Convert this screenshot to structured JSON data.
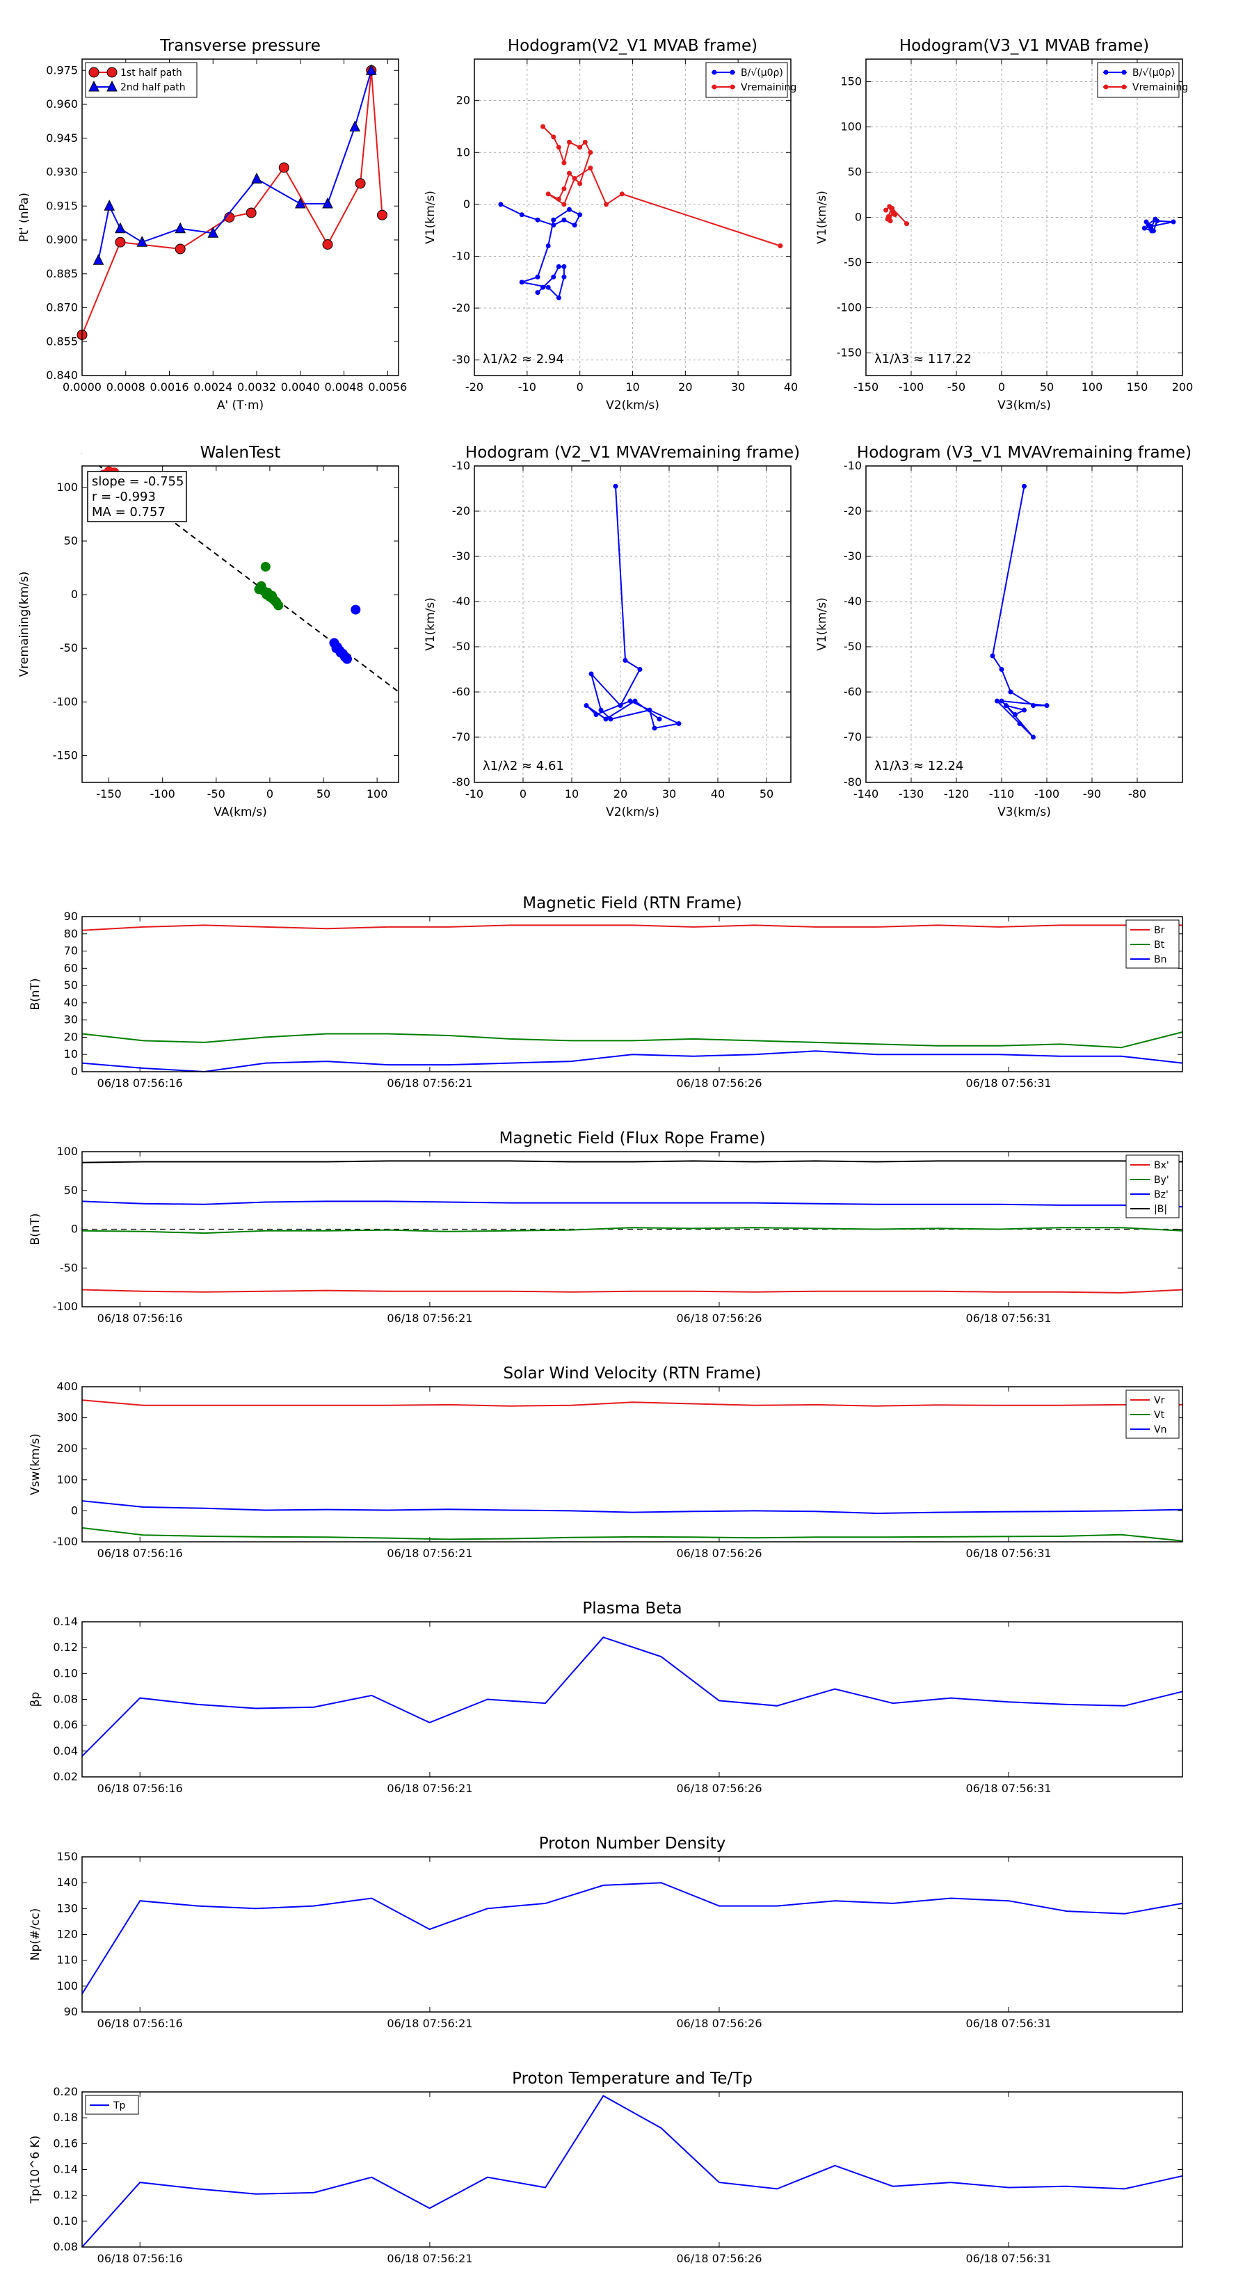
{
  "colors": {
    "red": "#e41a1c",
    "blue": "#0000ff",
    "green": "#008000",
    "black": "#000000",
    "grid": "#a9a9a9"
  },
  "chart_data": [
    {
      "id": "transverse",
      "type": "line",
      "title": "Transverse pressure",
      "xlabel": "A' (T·m)",
      "ylabel": "Pt' (nPa)",
      "xlim": [
        0.0,
        0.0058
      ],
      "ylim": [
        0.84,
        0.98
      ],
      "xticks": [
        0.0,
        0.0008,
        0.0016,
        0.0024,
        0.0032,
        0.004,
        0.0048,
        0.0056
      ],
      "xtick_labels": [
        "0.0000",
        "0.0008",
        "0.0016",
        "0.0024",
        "0.0032",
        "0.0040",
        "0.0048",
        "0.0056"
      ],
      "yticks": [
        0.84,
        0.855,
        0.87,
        0.885,
        0.9,
        0.915,
        0.93,
        0.945,
        0.96,
        0.975
      ],
      "ytick_labels": [
        "0.840",
        "0.855",
        "0.870",
        "0.885",
        "0.900",
        "0.915",
        "0.930",
        "0.945",
        "0.960",
        "0.975"
      ],
      "legend_position": "top-left",
      "series": [
        {
          "name": "1st half path",
          "color": "red",
          "marker": "circle",
          "x": [
            0.0,
            0.0007,
            0.0018,
            0.0027,
            0.0031,
            0.0037,
            0.0045,
            0.0051,
            0.0053,
            0.0055
          ],
          "y": [
            0.858,
            0.899,
            0.896,
            0.91,
            0.912,
            0.932,
            0.898,
            0.925,
            0.975,
            0.911
          ]
        },
        {
          "name": "2nd half path",
          "color": "blue",
          "marker": "triangle",
          "x": [
            0.0003,
            0.0005,
            0.0007,
            0.0011,
            0.0018,
            0.0024,
            0.0032,
            0.004,
            0.0045,
            0.005,
            0.0053
          ],
          "y": [
            0.891,
            0.915,
            0.905,
            0.899,
            0.905,
            0.903,
            0.927,
            0.916,
            0.916,
            0.95,
            0.975
          ]
        }
      ]
    },
    {
      "id": "hodo_v2_mvab",
      "type": "line",
      "title": "Hodogram(V2_V1 MVAB frame)",
      "xlabel": "V2(km/s)",
      "ylabel": "V1(km/s)",
      "xlim": [
        -20,
        40
      ],
      "ylim": [
        -33,
        28
      ],
      "grid": true,
      "xticks": [
        -20,
        -10,
        0,
        10,
        20,
        30,
        40
      ],
      "yticks": [
        -30,
        -20,
        -10,
        0,
        10,
        20
      ],
      "annotation": "λ1/λ2 ≈ 2.94",
      "legend_position": "top-right",
      "series": [
        {
          "name": "B/√(μ0ρ)",
          "color": "blue",
          "marker": "dot",
          "x": [
            -15,
            -11,
            -8,
            -5,
            -3,
            -1,
            0,
            -2,
            -5,
            -6,
            -8,
            -11,
            -6,
            -4,
            -3,
            -3,
            -4,
            -5,
            -7,
            -8
          ],
          "y": [
            0,
            -2,
            -3,
            -4,
            -3,
            -4,
            -2,
            -1,
            -3,
            -8,
            -14,
            -15,
            -16,
            -18,
            -14,
            -12,
            -12,
            -14,
            -16,
            -17
          ]
        },
        {
          "name": "Vremaining",
          "color": "red",
          "marker": "dot",
          "x": [
            -7,
            -5,
            -4,
            -3,
            -2,
            0,
            1,
            2,
            0,
            -2,
            -3,
            -4,
            -6,
            -3,
            -1,
            2,
            5,
            8,
            38
          ],
          "y": [
            15,
            13,
            11,
            8,
            12,
            11,
            12,
            10,
            4,
            6,
            3,
            1,
            2,
            0,
            5,
            7,
            0,
            2,
            -8
          ]
        }
      ]
    },
    {
      "id": "hodo_v3_mvab",
      "type": "line",
      "title": "Hodogram(V3_V1 MVAB frame)",
      "xlabel": "V3(km/s)",
      "ylabel": "V1(km/s)",
      "xlim": [
        -150,
        200
      ],
      "ylim": [
        -175,
        175
      ],
      "grid": true,
      "xticks": [
        -150,
        -100,
        -50,
        0,
        50,
        100,
        150,
        200
      ],
      "yticks": [
        -150,
        -100,
        -50,
        0,
        50,
        100,
        150
      ],
      "annotation": "λ1/λ3 ≈ 117.22",
      "legend_position": "top-right",
      "series": [
        {
          "name": "B/√(μ0ρ)",
          "color": "blue",
          "marker": "dot",
          "x": [
            160,
            165,
            170,
            162,
            168,
            172,
            190,
            165,
            158,
            166
          ],
          "y": [
            -5,
            -12,
            -2,
            -8,
            -15,
            -4,
            -5,
            -10,
            -12,
            -15
          ]
        },
        {
          "name": "Vremaining",
          "color": "red",
          "marker": "dot",
          "x": [
            -128,
            -124,
            -120,
            -126,
            -122,
            -118,
            -125,
            -123,
            -121,
            -105
          ],
          "y": [
            8,
            12,
            5,
            -2,
            10,
            3,
            1,
            -4,
            10,
            -7
          ]
        }
      ]
    },
    {
      "id": "walen",
      "type": "scatter",
      "title": "WalenTest",
      "xlabel": "VA(km/s)",
      "ylabel": "Vremaining(km/s)",
      "xlim": [
        -175,
        120
      ],
      "ylim": [
        -175,
        120
      ],
      "xticks": [
        -150,
        -100,
        -50,
        0,
        50,
        100
      ],
      "yticks": [
        -150,
        -100,
        -50,
        0,
        50,
        100
      ],
      "annotations": [
        "slope = -0.755",
        "r = -0.993",
        "MA = 0.757"
      ],
      "fit_line": {
        "slope": -0.755,
        "x_range": [
          -175,
          120
        ]
      },
      "series": [
        {
          "name": "red",
          "color": "red",
          "x": [
            -155,
            -150,
            -148,
            -145
          ],
          "y": [
            112,
            115,
            110,
            114
          ]
        },
        {
          "name": "green",
          "color": "green",
          "x": [
            -10,
            -5,
            -3,
            0,
            3,
            5,
            8,
            -8,
            -2,
            2,
            6,
            -4
          ],
          "y": [
            5,
            3,
            0,
            -2,
            -4,
            -6,
            -10,
            8,
            2,
            -1,
            -7,
            26
          ]
        },
        {
          "name": "blue",
          "color": "blue",
          "x": [
            60,
            62,
            65,
            68,
            70,
            72,
            66,
            63,
            80
          ],
          "y": [
            -45,
            -50,
            -52,
            -55,
            -58,
            -60,
            -54,
            -49,
            -14
          ]
        }
      ]
    },
    {
      "id": "hodo_v2_mvav",
      "type": "line",
      "title": "Hodogram (V2_V1 MVAVremaining frame)",
      "xlabel": "V2(km/s)",
      "ylabel": "V1(km/s)",
      "xlim": [
        -10,
        55
      ],
      "ylim": [
        -80,
        -10
      ],
      "grid": true,
      "xticks": [
        -10,
        0,
        10,
        20,
        30,
        40,
        50
      ],
      "yticks": [
        -80,
        -70,
        -60,
        -50,
        -40,
        -30,
        -20,
        -10
      ],
      "annotation": "λ1/λ2 ≈ 4.61",
      "series": [
        {
          "name": "V",
          "color": "blue",
          "marker": "dot",
          "x": [
            19,
            21,
            24,
            20,
            14,
            16,
            18,
            26,
            27,
            32,
            22,
            15,
            13,
            17,
            23,
            28
          ],
          "y": [
            -14.5,
            -53,
            -55,
            -63,
            -56,
            -64,
            -66,
            -64,
            -68,
            -67,
            -62,
            -65,
            -63,
            -66,
            -62,
            -66
          ]
        }
      ]
    },
    {
      "id": "hodo_v3_mvav",
      "type": "line",
      "title": "Hodogram (V3_V1 MVAVremaining frame)",
      "xlabel": "V3(km/s)",
      "ylabel": "V1(km/s)",
      "xlim": [
        -140,
        -70
      ],
      "ylim": [
        -80,
        -10
      ],
      "grid": true,
      "xticks": [
        -140,
        -130,
        -120,
        -110,
        -100,
        -90,
        -80
      ],
      "yticks": [
        -80,
        -70,
        -60,
        -50,
        -40,
        -30,
        -20,
        -10
      ],
      "annotation": "λ1/λ3 ≈ 12.24",
      "series": [
        {
          "name": "V",
          "color": "blue",
          "marker": "dot",
          "x": [
            -105,
            -112,
            -110,
            -108,
            -103,
            -100,
            -110,
            -107,
            -105,
            -109,
            -103,
            -111,
            -106
          ],
          "y": [
            -14.5,
            -52,
            -55,
            -60,
            -63,
            -63,
            -62,
            -65,
            -64,
            -63,
            -70,
            -62,
            -67
          ]
        }
      ]
    },
    {
      "id": "mag_rtn",
      "type": "line",
      "title": "Magnetic Field (RTN Frame)",
      "ylabel": "B(nT)",
      "ylim": [
        0,
        90
      ],
      "yticks": [
        0,
        10,
        20,
        30,
        40,
        50,
        60,
        70,
        80,
        90
      ],
      "xtick_labels": [
        "06/18 07:56:16",
        "06/18 07:56:21",
        "06/18 07:56:26",
        "06/18 07:56:31"
      ],
      "legend_position": "top-right",
      "series": [
        {
          "name": "Br",
          "color": "red",
          "values": [
            82,
            84,
            85,
            84,
            83,
            84,
            84,
            85,
            85,
            85,
            84,
            85,
            84,
            84,
            85,
            84,
            85,
            85,
            85
          ]
        },
        {
          "name": "Bt",
          "color": "green",
          "values": [
            22,
            18,
            17,
            20,
            22,
            22,
            21,
            19,
            18,
            18,
            19,
            18,
            17,
            16,
            15,
            15,
            16,
            14,
            23
          ]
        },
        {
          "name": "Bn",
          "color": "blue",
          "values": [
            5,
            2,
            0,
            5,
            6,
            4,
            4,
            5,
            6,
            10,
            9,
            10,
            12,
            10,
            10,
            10,
            9,
            9,
            5
          ]
        }
      ]
    },
    {
      "id": "mag_fr",
      "type": "line",
      "title": "Magnetic Field (Flux Rope Frame)",
      "ylabel": "B(nT)",
      "ylim": [
        -100,
        100
      ],
      "yticks": [
        -100,
        -50,
        0,
        50,
        100
      ],
      "xtick_labels": [
        "06/18 07:56:16",
        "06/18 07:56:21",
        "06/18 07:56:26",
        "06/18 07:56:31"
      ],
      "legend_position": "top-right",
      "dashed_zero": true,
      "series": [
        {
          "name": "Bx'",
          "color": "red",
          "values": [
            -78,
            -80,
            -81,
            -80,
            -79,
            -80,
            -80,
            -80,
            -81,
            -80,
            -80,
            -81,
            -80,
            -80,
            -80,
            -81,
            -81,
            -82,
            -78
          ]
        },
        {
          "name": "By'",
          "color": "green",
          "values": [
            -2,
            -3,
            -5,
            -2,
            -2,
            -1,
            -3,
            -2,
            -1,
            2,
            1,
            2,
            1,
            0,
            1,
            0,
            2,
            2,
            -2
          ]
        },
        {
          "name": "Bz'",
          "color": "blue",
          "values": [
            36,
            33,
            32,
            35,
            36,
            36,
            35,
            34,
            34,
            34,
            34,
            34,
            33,
            32,
            32,
            32,
            31,
            31,
            29
          ]
        },
        {
          "name": "|B|",
          "color": "black",
          "values": [
            86,
            87,
            87,
            87,
            87,
            88,
            88,
            88,
            87,
            87,
            88,
            87,
            88,
            87,
            88,
            88,
            88,
            88,
            87
          ]
        }
      ]
    },
    {
      "id": "vsw",
      "type": "line",
      "title": "Solar Wind Velocity (RTN Frame)",
      "ylabel": "Vsw(km/s)",
      "ylim": [
        -100,
        400
      ],
      "yticks": [
        -100,
        0,
        100,
        200,
        300,
        400
      ],
      "xtick_labels": [
        "06/18 07:56:16",
        "06/18 07:56:21",
        "06/18 07:56:26",
        "06/18 07:56:31"
      ],
      "legend_position": "top-right",
      "series": [
        {
          "name": "Vr",
          "color": "red",
          "values": [
            357,
            340,
            340,
            340,
            340,
            340,
            342,
            338,
            340,
            350,
            345,
            340,
            342,
            338,
            341,
            340,
            340,
            342,
            342
          ]
        },
        {
          "name": "Vt",
          "color": "green",
          "values": [
            -55,
            -78,
            -82,
            -84,
            -85,
            -88,
            -92,
            -90,
            -86,
            -84,
            -85,
            -87,
            -85,
            -85,
            -84,
            -83,
            -82,
            -77,
            -97
          ]
        },
        {
          "name": "Vn",
          "color": "blue",
          "values": [
            32,
            12,
            8,
            2,
            4,
            2,
            5,
            2,
            0,
            -5,
            -2,
            0,
            -2,
            -8,
            -5,
            -3,
            -2,
            0,
            4
          ]
        }
      ]
    },
    {
      "id": "beta",
      "type": "line",
      "title": "Plasma Beta",
      "ylabel": "βp",
      "ylim": [
        0.02,
        0.14
      ],
      "yticks": [
        0.02,
        0.04,
        0.06,
        0.08,
        0.1,
        0.12,
        0.14
      ],
      "ytick_labels": [
        "0.02",
        "0.04",
        "0.06",
        "0.08",
        "0.10",
        "0.12",
        "0.14"
      ],
      "xtick_labels": [
        "06/18 07:56:16",
        "06/18 07:56:21",
        "06/18 07:56:26",
        "06/18 07:56:31"
      ],
      "series": [
        {
          "name": "beta",
          "color": "blue",
          "values": [
            0.036,
            0.081,
            0.076,
            0.073,
            0.074,
            0.083,
            0.062,
            0.08,
            0.077,
            0.128,
            0.113,
            0.079,
            0.075,
            0.088,
            0.077,
            0.081,
            0.078,
            0.076,
            0.075,
            0.086
          ]
        }
      ]
    },
    {
      "id": "density",
      "type": "line",
      "title": "Proton Number Density",
      "ylabel": "Np(#/cc)",
      "ylim": [
        90,
        150
      ],
      "yticks": [
        90,
        100,
        110,
        120,
        130,
        140,
        150
      ],
      "xtick_labels": [
        "06/18 07:56:16",
        "06/18 07:56:21",
        "06/18 07:56:26",
        "06/18 07:56:31"
      ],
      "series": [
        {
          "name": "Np",
          "color": "blue",
          "values": [
            97,
            133,
            131,
            130,
            131,
            134,
            122,
            130,
            132,
            139,
            140,
            131,
            131,
            133,
            132,
            134,
            133,
            129,
            128,
            132
          ]
        }
      ]
    },
    {
      "id": "temp",
      "type": "line",
      "title": "Proton Temperature and Te/Tp",
      "ylabel": "Tp(10^6 K)",
      "ylim": [
        0.08,
        0.2
      ],
      "yticks": [
        0.08,
        0.1,
        0.12,
        0.14,
        0.16,
        0.18,
        0.2
      ],
      "ytick_labels": [
        "0.08",
        "0.10",
        "0.12",
        "0.14",
        "0.16",
        "0.18",
        "0.20"
      ],
      "xtick_labels": [
        "06/18 07:56:16",
        "06/18 07:56:21",
        "06/18 07:56:26",
        "06/18 07:56:31"
      ],
      "legend_position": "top-left",
      "series": [
        {
          "name": "Tp",
          "color": "blue",
          "values": [
            0.08,
            0.13,
            0.125,
            0.121,
            0.122,
            0.134,
            0.11,
            0.134,
            0.126,
            0.197,
            0.172,
            0.13,
            0.125,
            0.143,
            0.127,
            0.13,
            0.126,
            0.127,
            0.125,
            0.135
          ]
        }
      ]
    }
  ]
}
